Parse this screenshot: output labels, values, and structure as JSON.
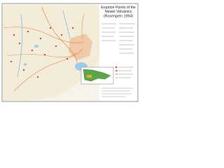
{
  "title": {
    "lines": [
      "Eruption Points of the",
      "Newer Volcanics",
      "(Rosengren 1994)"
    ]
  }
}
